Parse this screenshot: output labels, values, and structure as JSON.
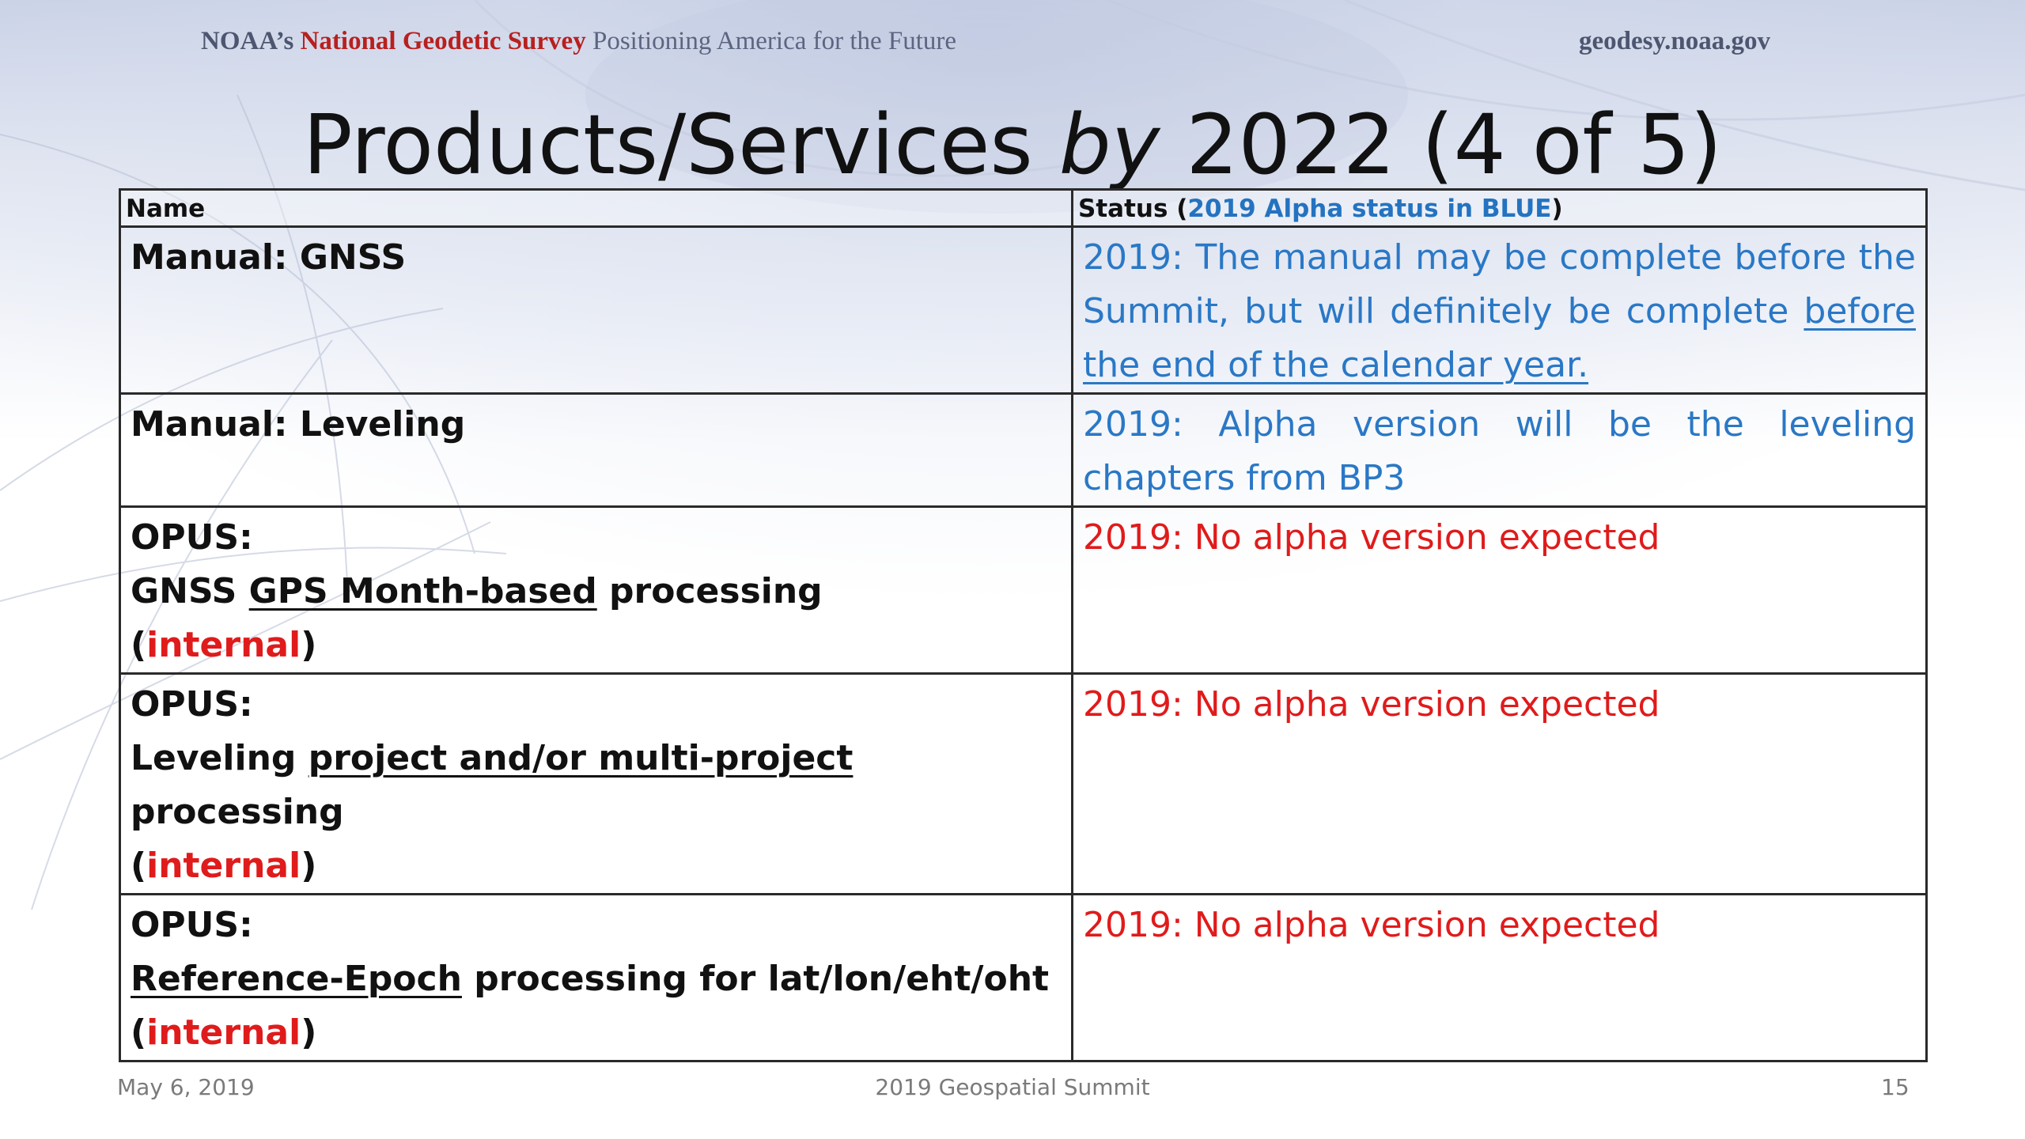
{
  "header": {
    "org": "NOAA’s",
    "ngs": "National Geodetic Survey",
    "tagline": "Positioning America for the Future",
    "website": "geodesy.noaa.gov"
  },
  "title": {
    "pre": "Products/Services ",
    "italic": "by",
    "post": " 2022 (4 of 5)"
  },
  "table": {
    "head_name": "Name",
    "head_status_pre": "Status (",
    "head_status_blue": "2019 Alpha status in BLUE",
    "head_status_post": ")",
    "rows": [
      {
        "name": "Manual:  GNSS",
        "status_a": "2019:  The manual may be complete before the Summit, but will definitely be complete ",
        "status_b": "before the end of the calendar year."
      },
      {
        "name": "Manual:  Leveling",
        "status_a": "2019:   Alpha version will be the leveling",
        "status_b": "chapters from BP3"
      },
      {
        "name_l1": "OPUS:",
        "name_l2_a": "GNSS ",
        "name_l2_u": "GPS Month-based",
        "name_l2_b": " processing",
        "name_l3_open": "(",
        "name_l3_red": "internal",
        "name_l3_close": ")",
        "status": "2019:  No alpha version expected"
      },
      {
        "name_l1": "OPUS:",
        "name_l2_a": "Leveling ",
        "name_l2_u": "project and/or multi-project ",
        "name_l2_b": "processing",
        "name_l3_open": "(",
        "name_l3_red": "internal",
        "name_l3_close": ")",
        "status": "2019:  No alpha version expected"
      },
      {
        "name_l1": "OPUS:",
        "name_l2_u": "Reference-Epoch",
        "name_l2_b": " processing for lat/lon/eht/oht",
        "name_l3_open": "(",
        "name_l3_red": "internal",
        "name_l3_close": ")",
        "status": "2019:  No alpha version expected"
      }
    ]
  },
  "footer": {
    "date": "May 6, 2019",
    "event": "2019 Geospatial Summit",
    "page": "15"
  }
}
